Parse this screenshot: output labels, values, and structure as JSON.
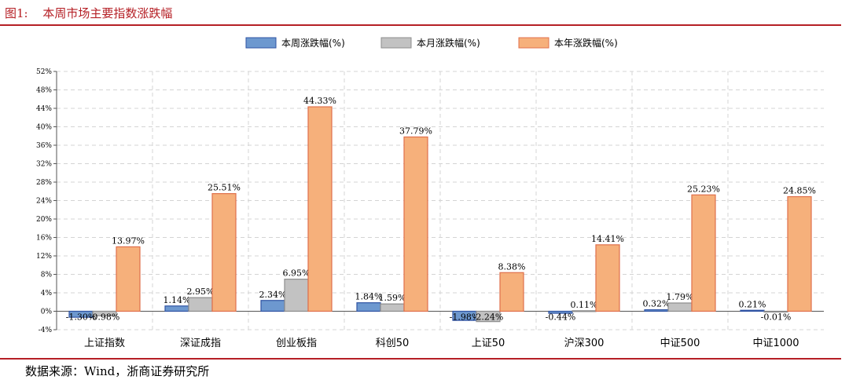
{
  "figure": {
    "number": "图1:",
    "title": "本周市场主要指数涨跌幅",
    "source": "数据来源：Wind，浙商证券研究所"
  },
  "colors": {
    "accent": "#b51f25",
    "weekly_fill": "#6d98cf",
    "weekly_stroke": "#2f53a3",
    "monthly_fill": "#c2c2c2",
    "monthly_stroke": "#8c8c8c",
    "yearly_fill": "#f6b07b",
    "yearly_stroke": "#e0704c"
  },
  "chart_data": {
    "type": "bar",
    "categories": [
      "上证指数",
      "深证成指",
      "创业板指",
      "科创50",
      "上证50",
      "沪深300",
      "中证500",
      "中证1000"
    ],
    "series": [
      {
        "name": "本周涨跌幅(%)",
        "values": [
          -1.3,
          1.14,
          2.34,
          1.84,
          -1.98,
          -0.44,
          0.32,
          0.21
        ],
        "labels": [
          "-1.30%",
          "1.14%",
          "2.34%",
          "1.84%",
          "-1.98%",
          "-0.44%",
          "0.32%",
          "0.21%"
        ]
      },
      {
        "name": "本月涨跌幅(%)",
        "values": [
          -0.98,
          2.95,
          6.95,
          1.59,
          -2.24,
          0.11,
          1.79,
          -0.01
        ],
        "labels": [
          "-0.98%",
          "2.95%",
          "6.95%",
          "1.59%",
          "-2.24%",
          "0.11%",
          "1.79%",
          "-0.01%"
        ]
      },
      {
        "name": "本年涨跌幅(%)",
        "values": [
          13.97,
          25.51,
          44.33,
          37.79,
          8.38,
          14.41,
          25.23,
          24.85
        ],
        "labels": [
          "13.97%",
          "25.51%",
          "44.33%",
          "37.79%",
          "8.38%",
          "14.41%",
          "25.23%",
          "24.85%"
        ]
      }
    ],
    "ylim": [
      -4,
      52
    ],
    "yticks": [
      "-4%",
      "0%",
      "4%",
      "8%",
      "12%",
      "16%",
      "20%",
      "24%",
      "28%",
      "32%",
      "36%",
      "40%",
      "44%",
      "48%",
      "52%"
    ],
    "grid": true,
    "legend_position": "top-center"
  }
}
